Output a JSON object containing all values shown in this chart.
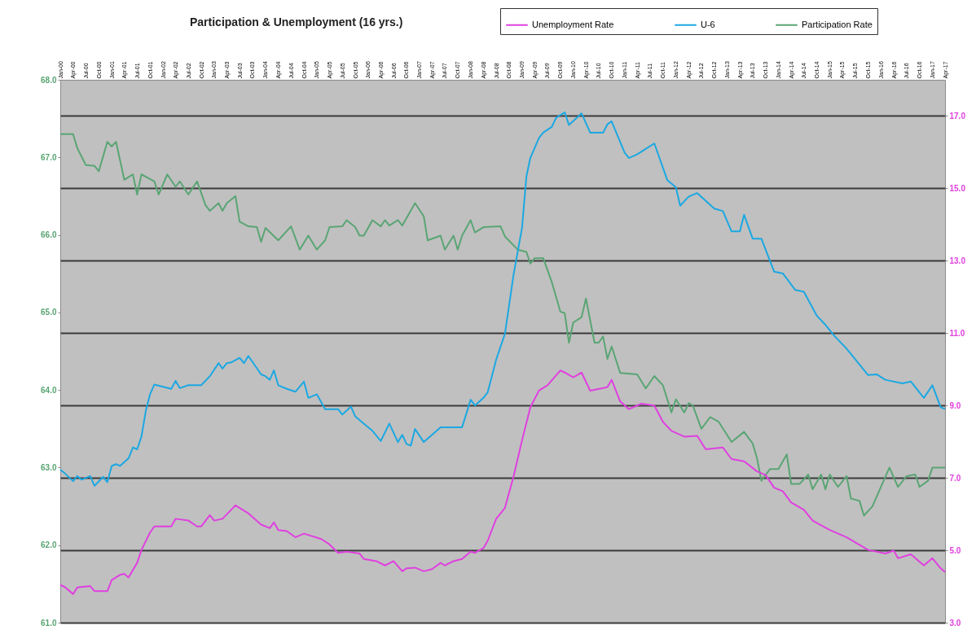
{
  "chart_data": {
    "type": "line",
    "title": "Participation & Unemployment (16 yrs.)",
    "xlim": [
      "2000-01",
      "2017-04"
    ],
    "xticks": [
      {
        "value": "2000-01",
        "label": "Jan-00"
      },
      {
        "value": "2000-04",
        "label": "Apr-00"
      },
      {
        "value": "2000-07",
        "label": "Jul-00"
      },
      {
        "value": "2000-10",
        "label": "Oct-00"
      },
      {
        "value": "2001-01",
        "label": "Jan-01"
      },
      {
        "value": "2001-04",
        "label": "Apr-01"
      },
      {
        "value": "2001-07",
        "label": "Jul-01"
      },
      {
        "value": "2001-10",
        "label": "Oct-01"
      },
      {
        "value": "2002-01",
        "label": "Jan-02"
      },
      {
        "value": "2002-04",
        "label": "Apr-02"
      },
      {
        "value": "2002-07",
        "label": "Jul-02"
      },
      {
        "value": "2002-10",
        "label": "Oct-02"
      },
      {
        "value": "2003-01",
        "label": "Jan-03"
      },
      {
        "value": "2003-04",
        "label": "Apr-03"
      },
      {
        "value": "2003-07",
        "label": "Jul-03"
      },
      {
        "value": "2003-10",
        "label": "Oct-03"
      },
      {
        "value": "2004-01",
        "label": "Jan-04"
      },
      {
        "value": "2004-04",
        "label": "Apr-04"
      },
      {
        "value": "2004-07",
        "label": "Jul-04"
      },
      {
        "value": "2004-10",
        "label": "Oct-04"
      },
      {
        "value": "2005-01",
        "label": "Jan-05"
      },
      {
        "value": "2005-04",
        "label": "Apr-05"
      },
      {
        "value": "2005-07",
        "label": "Jul-05"
      },
      {
        "value": "2005-10",
        "label": "Oct-05"
      },
      {
        "value": "2006-01",
        "label": "Jan-06"
      },
      {
        "value": "2006-04",
        "label": "Apr-06"
      },
      {
        "value": "2006-07",
        "label": "Jul-06"
      },
      {
        "value": "2006-10",
        "label": "Oct-06"
      },
      {
        "value": "2007-01",
        "label": "Jan-07"
      },
      {
        "value": "2007-04",
        "label": "Apr-07"
      },
      {
        "value": "2007-07",
        "label": "Jul-07"
      },
      {
        "value": "2007-10",
        "label": "Oct-07"
      },
      {
        "value": "2008-01",
        "label": "Jan-08"
      },
      {
        "value": "2008-04",
        "label": "Apr-08"
      },
      {
        "value": "2008-07",
        "label": "Jul-08"
      },
      {
        "value": "2008-10",
        "label": "Oct-08"
      },
      {
        "value": "2009-01",
        "label": "Jan-09"
      },
      {
        "value": "2009-04",
        "label": "Apr-09"
      },
      {
        "value": "2009-07",
        "label": "Jul-09"
      },
      {
        "value": "2009-10",
        "label": "Oct-09"
      },
      {
        "value": "2010-01",
        "label": "Jan-10"
      },
      {
        "value": "2010-04",
        "label": "Apr-10"
      },
      {
        "value": "2010-07",
        "label": "Jul-10"
      },
      {
        "value": "2010-10",
        "label": "Oct-10"
      },
      {
        "value": "2011-01",
        "label": "Jan-11"
      },
      {
        "value": "2011-04",
        "label": "Apr-11"
      },
      {
        "value": "2011-07",
        "label": "Jul-11"
      },
      {
        "value": "2011-10",
        "label": "Oct-11"
      },
      {
        "value": "2012-01",
        "label": "Jan-12"
      },
      {
        "value": "2012-04",
        "label": "Apr-12"
      },
      {
        "value": "2012-07",
        "label": "Jul-12"
      },
      {
        "value": "2012-10",
        "label": "Oct-12"
      },
      {
        "value": "2013-01",
        "label": "Jan-13"
      },
      {
        "value": "2013-04",
        "label": "Apr-13"
      },
      {
        "value": "2013-07",
        "label": "Jul-13"
      },
      {
        "value": "2013-10",
        "label": "Oct-13"
      },
      {
        "value": "2014-01",
        "label": "Jan-14"
      },
      {
        "value": "2014-04",
        "label": "Apr-14"
      },
      {
        "value": "2014-07",
        "label": "Jul-14"
      },
      {
        "value": "2014-10",
        "label": "Oct-14"
      },
      {
        "value": "2015-01",
        "label": "Jan-15"
      },
      {
        "value": "2015-04",
        "label": "Apr-15"
      },
      {
        "value": "2015-07",
        "label": "Jul-15"
      },
      {
        "value": "2015-10",
        "label": "Oct-15"
      },
      {
        "value": "2016-01",
        "label": "Jan-16"
      },
      {
        "value": "2016-04",
        "label": "Apr-16"
      },
      {
        "value": "2016-07",
        "label": "Jul-16"
      },
      {
        "value": "2016-10",
        "label": "Oct-16"
      },
      {
        "value": "2017-01",
        "label": "Jan-17"
      },
      {
        "value": "2017-04",
        "label": "Apr-17"
      }
    ],
    "ylim": [
      61,
      68
    ],
    "yticks": [
      {
        "value": 61,
        "label": "61.0"
      },
      {
        "value": 62,
        "label": "62.0"
      },
      {
        "value": 63,
        "label": "63.0"
      },
      {
        "value": 64,
        "label": "64.0"
      },
      {
        "value": 65,
        "label": "65.0"
      },
      {
        "value": 66,
        "label": "66.0"
      },
      {
        "value": 67,
        "label": "67.0"
      },
      {
        "value": 68,
        "label": "68.0"
      }
    ],
    "y2lim": [
      3,
      18
    ],
    "y2ticks": [
      {
        "value": 3,
        "label": "3.0"
      },
      {
        "value": 5,
        "label": "5.0"
      },
      {
        "value": 7,
        "label": "7.0"
      },
      {
        "value": 9,
        "label": "9.0"
      },
      {
        "value": 11,
        "label": "11.0"
      },
      {
        "value": 13,
        "label": "13.0"
      },
      {
        "value": 15,
        "label": "15.0"
      },
      {
        "value": 17,
        "label": "17.0"
      }
    ],
    "grid": "y",
    "legend": "top right",
    "series": [
      {
        "name": "Unemployment Rate",
        "color": "#e040e0",
        "axis": "y2",
        "x": [
          "2000-01",
          "2000-02",
          "2000-04",
          "2000-05",
          "2000-08",
          "2000-09",
          "2000-12",
          "2001-01",
          "2001-03",
          "2001-04",
          "2001-05",
          "2001-07",
          "2001-08",
          "2001-10",
          "2001-11",
          "2002-03",
          "2002-04",
          "2002-07",
          "2002-09",
          "2002-10",
          "2002-12",
          "2003-01",
          "2003-03",
          "2003-06",
          "2003-09",
          "2003-12",
          "2004-02",
          "2004-03",
          "2004-04",
          "2004-06",
          "2004-08",
          "2004-10",
          "2005-02",
          "2005-04",
          "2005-06",
          "2005-08",
          "2005-11",
          "2005-12",
          "2006-03",
          "2006-05",
          "2006-07",
          "2006-09",
          "2006-10",
          "2006-12",
          "2007-02",
          "2007-04",
          "2007-06",
          "2007-07",
          "2007-09",
          "2007-11",
          "2008-01",
          "2008-02",
          "2008-04",
          "2008-05",
          "2008-07",
          "2008-09",
          "2008-11",
          "2009-01",
          "2009-03",
          "2009-05",
          "2009-07",
          "2009-10",
          "2009-11",
          "2010-01",
          "2010-03",
          "2010-05",
          "2010-08",
          "2010-09",
          "2010-10",
          "2010-12",
          "2011-02",
          "2011-05",
          "2011-08",
          "2011-10",
          "2011-12",
          "2012-03",
          "2012-06",
          "2012-08",
          "2012-12",
          "2013-02",
          "2013-05",
          "2013-08",
          "2013-10",
          "2013-12",
          "2014-02",
          "2014-04",
          "2014-07",
          "2014-09",
          "2015-01",
          "2015-05",
          "2015-10",
          "2016-02",
          "2016-04",
          "2016-05",
          "2016-08",
          "2016-11",
          "2017-01",
          "2017-03",
          "2017-04"
        ],
        "values": [
          4.04,
          3.99,
          3.79,
          3.97,
          4.01,
          3.87,
          3.87,
          4.18,
          4.32,
          4.35,
          4.25,
          4.65,
          5.01,
          5.49,
          5.66,
          5.66,
          5.87,
          5.82,
          5.66,
          5.66,
          5.97,
          5.82,
          5.87,
          6.24,
          6.02,
          5.71,
          5.61,
          5.77,
          5.56,
          5.53,
          5.36,
          5.46,
          5.31,
          5.16,
          4.93,
          4.96,
          4.91,
          4.76,
          4.7,
          4.58,
          4.7,
          4.42,
          4.5,
          4.52,
          4.42,
          4.48,
          4.65,
          4.58,
          4.7,
          4.76,
          4.96,
          4.93,
          5.06,
          5.26,
          5.87,
          6.17,
          7.03,
          8.04,
          8.95,
          9.41,
          9.56,
          9.97,
          9.91,
          9.78,
          9.91,
          9.41,
          9.48,
          9.51,
          9.71,
          9.11,
          8.9,
          9.05,
          9.0,
          8.55,
          8.3,
          8.14,
          8.16,
          7.79,
          7.84,
          7.52,
          7.46,
          7.18,
          7.08,
          6.73,
          6.63,
          6.32,
          6.12,
          5.82,
          5.56,
          5.36,
          5.01,
          4.91,
          4.99,
          4.78,
          4.89,
          4.58,
          4.78,
          4.5,
          4.4
        ]
      },
      {
        "name": "U-6",
        "color": "#1ba8e2",
        "axis": "y2",
        "x": [
          "2000-01",
          "2000-02",
          "2000-04",
          "2000-05",
          "2000-06",
          "2000-08",
          "2000-09",
          "2000-11",
          "2000-12",
          "2001-01",
          "2001-02",
          "2001-03",
          "2001-05",
          "2001-06",
          "2001-07",
          "2001-08",
          "2001-09",
          "2001-10",
          "2001-11",
          "2002-03",
          "2002-04",
          "2002-05",
          "2002-07",
          "2002-10",
          "2002-12",
          "2003-02",
          "2003-03",
          "2003-04",
          "2003-05",
          "2003-07",
          "2003-08",
          "2003-09",
          "2003-12",
          "2004-01",
          "2004-02",
          "2004-03",
          "2004-04",
          "2004-06",
          "2004-08",
          "2004-10",
          "2004-11",
          "2005-01",
          "2005-03",
          "2005-06",
          "2005-07",
          "2005-09",
          "2005-10",
          "2005-12",
          "2006-02",
          "2006-04",
          "2006-06",
          "2006-08",
          "2006-09",
          "2006-10",
          "2006-11",
          "2006-12",
          "2007-02",
          "2007-04",
          "2007-06",
          "2007-11",
          "2008-01",
          "2008-02",
          "2008-04",
          "2008-05",
          "2008-07",
          "2008-09",
          "2008-11",
          "2009-01",
          "2009-02",
          "2009-03",
          "2009-05",
          "2009-06",
          "2009-08",
          "2009-09",
          "2009-11",
          "2009-12",
          "2010-02",
          "2010-03",
          "2010-05",
          "2010-08",
          "2010-09",
          "2010-10",
          "2011-01",
          "2011-02",
          "2011-04",
          "2011-06",
          "2011-08",
          "2011-11",
          "2012-01",
          "2012-02",
          "2012-04",
          "2012-06",
          "2012-10",
          "2012-12",
          "2013-02",
          "2013-04",
          "2013-05",
          "2013-07",
          "2013-09",
          "2013-11",
          "2013-12",
          "2014-02",
          "2014-05",
          "2014-07",
          "2014-10",
          "2014-12",
          "2015-02",
          "2015-05",
          "2015-10",
          "2015-12",
          "2016-02",
          "2016-06",
          "2016-08",
          "2016-11",
          "2017-01",
          "2017-03",
          "2017-04"
        ],
        "values": [
          7.23,
          7.13,
          6.91,
          7.05,
          6.95,
          7.05,
          6.78,
          7.03,
          6.88,
          7.33,
          7.38,
          7.33,
          7.54,
          7.84,
          7.79,
          8.14,
          8.85,
          9.31,
          9.58,
          9.46,
          9.68,
          9.48,
          9.56,
          9.56,
          9.81,
          10.17,
          10.02,
          10.17,
          10.19,
          10.32,
          10.17,
          10.37,
          9.86,
          9.81,
          9.71,
          9.97,
          9.56,
          9.46,
          9.38,
          9.66,
          9.21,
          9.31,
          8.9,
          8.9,
          8.75,
          8.97,
          8.7,
          8.5,
          8.3,
          8.02,
          8.5,
          7.99,
          8.19,
          7.94,
          7.89,
          8.35,
          7.99,
          8.19,
          8.4,
          8.4,
          9.16,
          9.0,
          9.21,
          9.36,
          10.27,
          10.98,
          12.6,
          13.91,
          15.33,
          15.84,
          16.39,
          16.54,
          16.7,
          16.95,
          17.1,
          16.75,
          16.97,
          17.07,
          16.54,
          16.54,
          16.77,
          16.85,
          15.99,
          15.84,
          15.94,
          16.09,
          16.24,
          15.23,
          15.03,
          14.52,
          14.77,
          14.87,
          14.44,
          14.37,
          13.81,
          13.81,
          14.27,
          13.61,
          13.61,
          13.0,
          12.7,
          12.65,
          12.19,
          12.14,
          11.48,
          11.23,
          10.93,
          10.57,
          9.84,
          9.86,
          9.71,
          9.61,
          9.66,
          9.21,
          9.56,
          8.95,
          8.9
        ]
      },
      {
        "name": "Participation Rate",
        "color": "#5aa574",
        "axis": "y",
        "x": [
          "2000-01",
          "2000-04",
          "2000-05",
          "2000-07",
          "2000-09",
          "2000-10",
          "2000-12",
          "2001-01",
          "2001-02",
          "2001-04",
          "2001-06",
          "2001-07",
          "2001-08",
          "2001-11",
          "2001-12",
          "2002-02",
          "2002-04",
          "2002-05",
          "2002-07",
          "2002-09",
          "2002-11",
          "2002-12",
          "2003-02",
          "2003-03",
          "2003-04",
          "2003-06",
          "2003-07",
          "2003-09",
          "2003-11",
          "2003-12",
          "2004-01",
          "2004-04",
          "2004-07",
          "2004-09",
          "2004-11",
          "2005-01",
          "2005-03",
          "2005-04",
          "2005-07",
          "2005-08",
          "2005-10",
          "2005-11",
          "2005-12",
          "2006-02",
          "2006-04",
          "2006-05",
          "2006-06",
          "2006-08",
          "2006-09",
          "2006-12",
          "2007-02",
          "2007-03",
          "2007-06",
          "2007-07",
          "2007-09",
          "2007-10",
          "2007-11",
          "2008-01",
          "2008-02",
          "2008-04",
          "2008-08",
          "2008-09",
          "2008-12",
          "2009-02",
          "2009-03",
          "2009-04",
          "2009-06",
          "2009-08",
          "2009-10",
          "2009-11",
          "2009-12",
          "2010-01",
          "2010-03",
          "2010-04",
          "2010-06",
          "2010-07",
          "2010-08",
          "2010-09",
          "2010-10",
          "2010-12",
          "2011-04",
          "2011-06",
          "2011-08",
          "2011-10",
          "2011-12",
          "2012-01",
          "2012-03",
          "2012-04",
          "2012-05",
          "2012-07",
          "2012-09",
          "2012-11",
          "2013-02",
          "2013-05",
          "2013-07",
          "2013-08",
          "2013-09",
          "2013-11",
          "2014-01",
          "2014-03",
          "2014-04",
          "2014-06",
          "2014-08",
          "2014-09",
          "2014-11",
          "2014-12",
          "2015-01",
          "2015-03",
          "2015-05",
          "2015-06",
          "2015-08",
          "2015-09",
          "2015-11",
          "2016-03",
          "2016-05",
          "2016-07",
          "2016-09",
          "2016-10",
          "2016-12",
          "2017-01",
          "2017-04"
        ],
        "values": [
          67.3,
          67.3,
          67.12,
          66.9,
          66.89,
          66.82,
          67.2,
          67.14,
          67.2,
          66.71,
          66.78,
          66.52,
          66.78,
          66.69,
          66.52,
          66.78,
          66.62,
          66.69,
          66.52,
          66.69,
          66.38,
          66.31,
          66.41,
          66.31,
          66.41,
          66.5,
          66.17,
          66.11,
          66.1,
          65.91,
          66.09,
          65.93,
          66.11,
          65.81,
          65.99,
          65.81,
          65.93,
          66.1,
          66.11,
          66.19,
          66.1,
          65.99,
          65.99,
          66.19,
          66.11,
          66.19,
          66.12,
          66.19,
          66.12,
          66.41,
          66.24,
          65.93,
          65.99,
          65.81,
          65.99,
          65.81,
          65.99,
          66.19,
          66.03,
          66.1,
          66.11,
          65.98,
          65.81,
          65.78,
          65.63,
          65.7,
          65.7,
          65.39,
          65.01,
          64.99,
          64.61,
          64.87,
          64.94,
          65.18,
          64.61,
          64.61,
          64.69,
          64.4,
          64.56,
          64.22,
          64.2,
          64.02,
          64.18,
          64.06,
          63.71,
          63.88,
          63.71,
          63.83,
          63.8,
          63.5,
          63.65,
          63.59,
          63.33,
          63.46,
          63.31,
          63.12,
          62.83,
          62.98,
          62.98,
          63.17,
          62.79,
          62.79,
          62.91,
          62.72,
          62.91,
          62.72,
          62.91,
          62.75,
          62.89,
          62.6,
          62.57,
          62.38,
          62.5,
          63.0,
          62.75,
          62.89,
          62.91,
          62.75,
          62.83,
          63.0,
          63.0
        ]
      }
    ]
  }
}
